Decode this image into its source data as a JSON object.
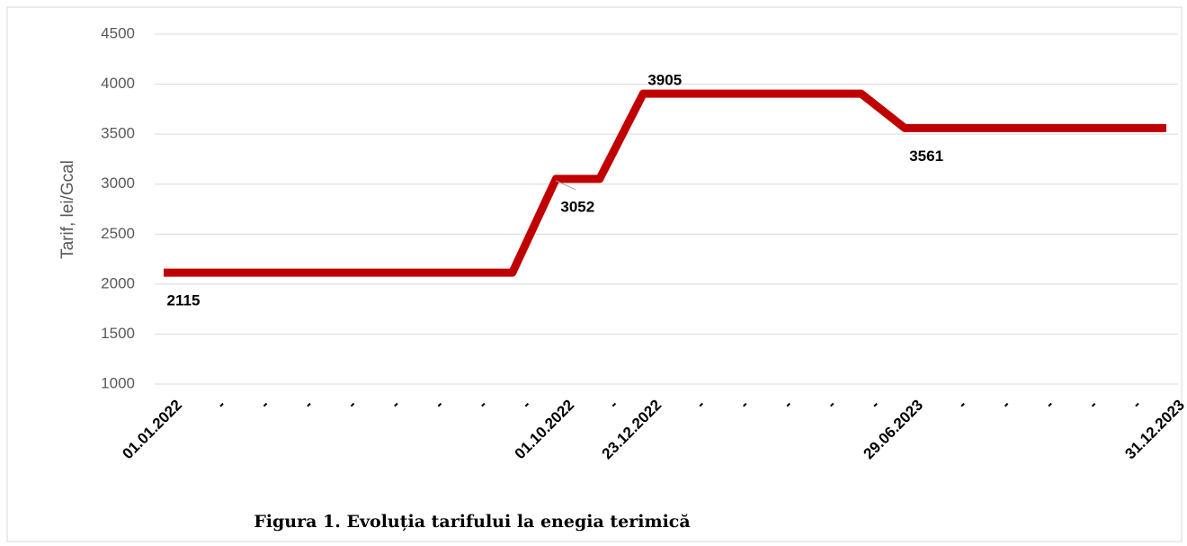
{
  "chart_data": {
    "type": "line",
    "title": "Figura 1. Evoluția tarifului la enegia terimică",
    "y_label": "Tarif, lei/Gcal",
    "categories": [
      "01.01.2022",
      "-",
      "-",
      "-",
      "-",
      "-",
      "-",
      "-",
      "-",
      "01.10.2022",
      "-",
      "23.12.2022",
      "-",
      "-",
      "-",
      "-",
      "-",
      "29.06.2023",
      "-",
      "-",
      "-",
      "-",
      "-",
      "31.12.2023"
    ],
    "series": [
      {
        "name": "Tarif",
        "color": "#c00000",
        "values": [
          2115,
          2115,
          2115,
          2115,
          2115,
          2115,
          2115,
          2115,
          2115,
          3052,
          3052,
          3905,
          3905,
          3905,
          3905,
          3905,
          3905,
          3561,
          3561,
          3561,
          3561,
          3561,
          3561,
          3561
        ],
        "value_labels": [
          "2115",
          null,
          null,
          null,
          null,
          null,
          null,
          null,
          null,
          "3052",
          null,
          "3905",
          null,
          null,
          null,
          null,
          null,
          "3561",
          null,
          null,
          null,
          null,
          null,
          null
        ]
      }
    ],
    "ylim": [
      1000,
      4500
    ],
    "yticks": [
      1000,
      1500,
      2000,
      2500,
      3000,
      3500,
      4000,
      4500
    ],
    "grid": true
  }
}
